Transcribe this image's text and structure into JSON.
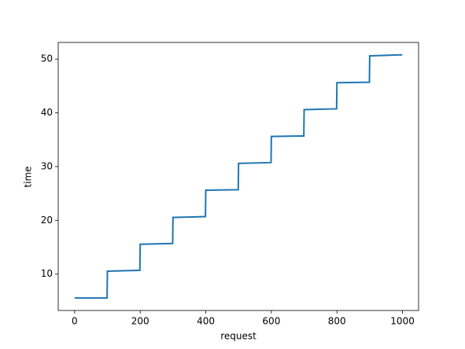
{
  "chart_data": {
    "type": "line",
    "x_label": "request",
    "y_label": "time",
    "x": [
      0,
      99,
      100,
      199,
      200,
      299,
      300,
      399,
      400,
      499,
      500,
      599,
      600,
      699,
      700,
      799,
      800,
      899,
      900,
      999
    ],
    "series": [
      {
        "color": "#1f77b4",
        "values": [
          5.55,
          5.55,
          10.55,
          10.7,
          15.55,
          15.7,
          20.55,
          20.7,
          25.6,
          25.7,
          30.6,
          30.75,
          35.6,
          35.7,
          40.6,
          40.75,
          45.6,
          45.7,
          50.6,
          50.8
        ]
      }
    ],
    "xlim": [
      -50,
      1049
    ],
    "ylim": [
      3.23,
      53.1
    ],
    "xticks": [
      0,
      200,
      400,
      600,
      800,
      1000
    ],
    "yticks": [
      10,
      20,
      30,
      40,
      50
    ],
    "grid": false
  }
}
